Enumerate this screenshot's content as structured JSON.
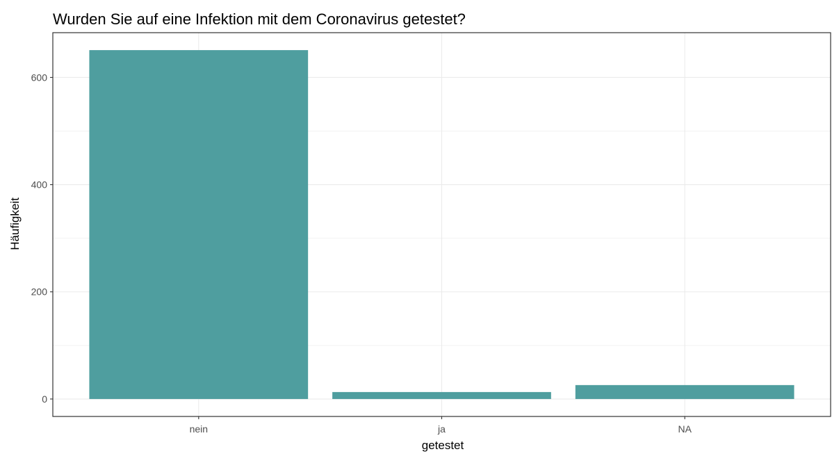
{
  "chart_data": {
    "type": "bar",
    "title": "Wurden Sie auf eine Infektion mit dem Coronavirus getestet?",
    "xlabel": "getestet",
    "ylabel": "Häufigkeit",
    "categories": [
      "nein",
      "ja",
      "NA"
    ],
    "values": [
      651,
      13,
      26
    ],
    "ylim": [
      -32.55,
      683.55
    ],
    "yticks": [
      0,
      200,
      400,
      600
    ],
    "ytick_labels": [
      "0",
      "200",
      "400",
      "600"
    ],
    "grid": true,
    "bar_color": "#4F9E9F"
  }
}
